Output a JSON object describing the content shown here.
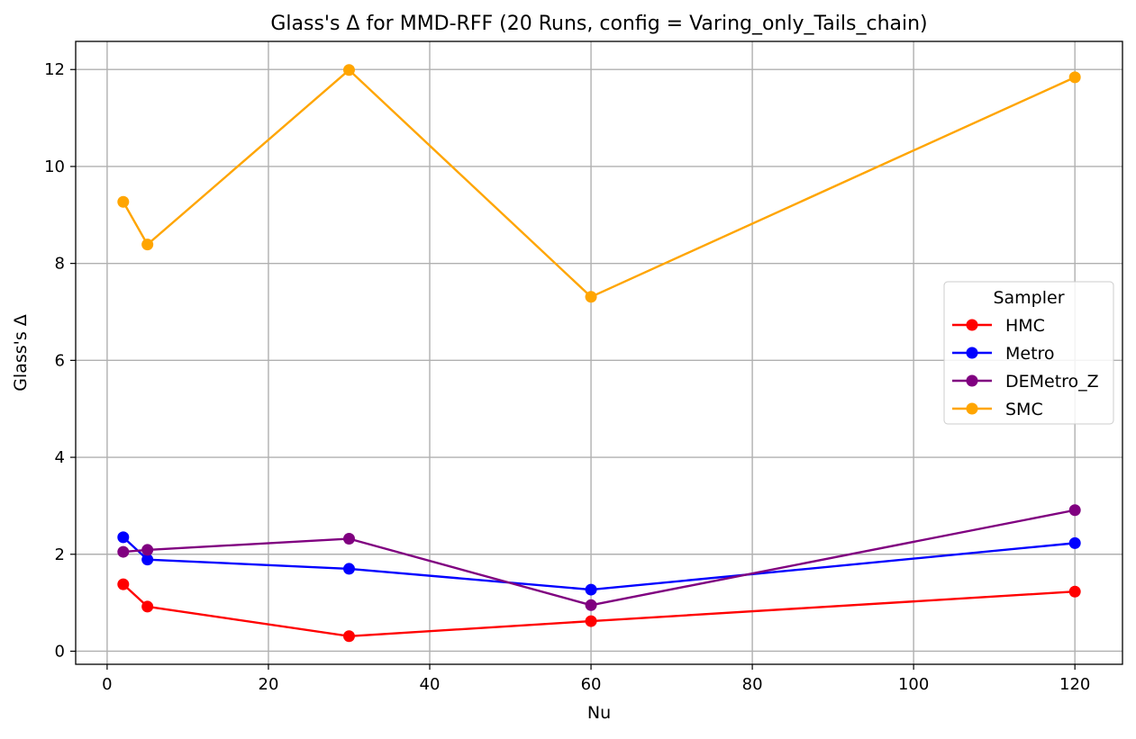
{
  "chart_data": {
    "type": "line",
    "title": "Glass's Δ for MMD-RFF (20 Runs, config = Varing_only_Tails_chain)",
    "xlabel": "Nu",
    "ylabel": "Glass's Δ",
    "x": [
      2,
      5,
      30,
      60,
      120
    ],
    "xlim": [
      -3.9,
      125.9
    ],
    "ylim": [
      -0.27,
      12.58
    ],
    "xticks": [
      0,
      20,
      40,
      60,
      80,
      100,
      120
    ],
    "yticks": [
      0,
      2,
      4,
      6,
      8,
      10,
      12
    ],
    "grid": true,
    "legend": {
      "title": "Sampler",
      "placement": "center-right"
    },
    "series": [
      {
        "name": "HMC",
        "color": "#ff0000",
        "values": [
          1.38,
          0.92,
          0.31,
          0.62,
          1.23
        ]
      },
      {
        "name": "Metro",
        "color": "#0000ff",
        "values": [
          2.35,
          1.89,
          1.7,
          1.27,
          2.23
        ]
      },
      {
        "name": "DEMetro_Z",
        "color": "#800080",
        "values": [
          2.05,
          2.09,
          2.32,
          0.95,
          2.91
        ]
      },
      {
        "name": "SMC",
        "color": "#ffa500",
        "values": [
          9.27,
          8.39,
          11.99,
          7.31,
          11.84
        ]
      }
    ]
  }
}
